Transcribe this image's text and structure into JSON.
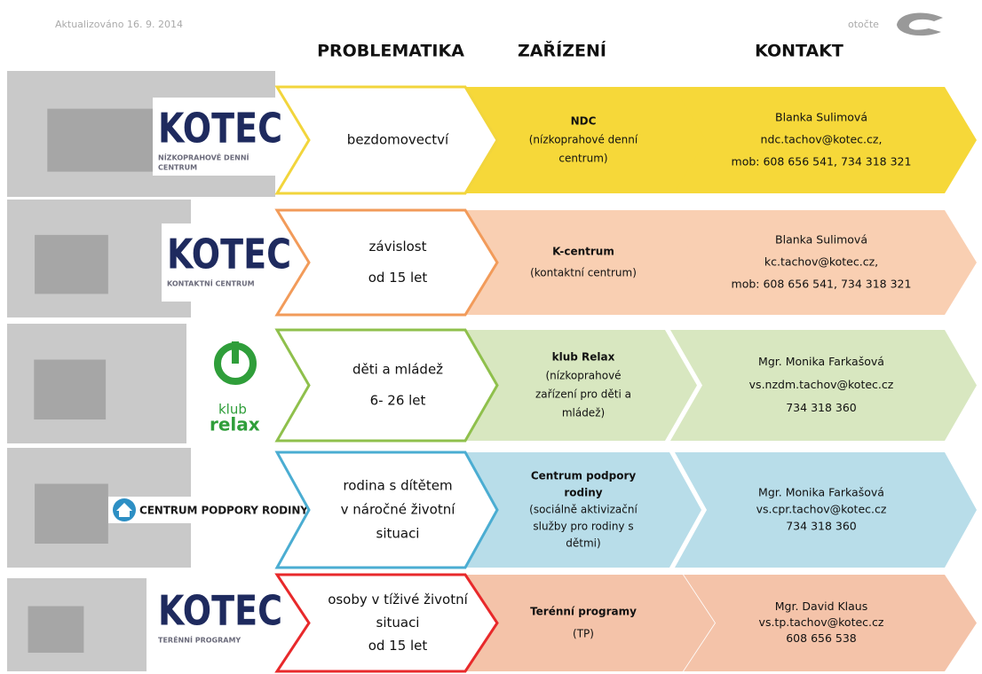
{
  "header": {
    "updated": "Aktualizováno 16. 9. 2014",
    "turn": "otočte"
  },
  "columns": [
    "PROBLEMATIKA",
    "ZAŘÍZENÍ",
    "KONTAKT"
  ],
  "rows": [
    {
      "logo": {
        "brand": "KOTEC",
        "subtitle": [
          "NÍZKOPRAHOVÉ DENNÍ",
          "CENTRUM"
        ]
      },
      "problem": [
        "bezdomovectví"
      ],
      "facility": {
        "title": [
          "NDC"
        ],
        "detail": [
          "(nízkoprahové denní",
          "centrum)"
        ]
      },
      "contact": [
        "Blanka Sulimová",
        "ndc.tachov@kotec.cz,",
        "mob: 608 656 541, 734 318 321"
      ]
    },
    {
      "logo": {
        "brand": "KOTEC",
        "subtitle": [
          "KONTAKTNÍ CENTRUM"
        ]
      },
      "problem": [
        "závislost",
        "od 15 let"
      ],
      "facility": {
        "title": [
          "K-centrum"
        ],
        "detail": [
          "(kontaktní centrum)"
        ]
      },
      "contact": [
        "Blanka Sulimová",
        "kc.tachov@kotec.cz,",
        "mob: 608 656 541, 734 318 321"
      ]
    },
    {
      "logo": {
        "brand": "relax",
        "subtitle": [
          "klub"
        ]
      },
      "problem": [
        "děti a mládež",
        "6- 26 let"
      ],
      "facility": {
        "title": [
          "klub Relax"
        ],
        "detail": [
          "(nízkoprahové",
          "zařízení pro děti a",
          "mládež)"
        ]
      },
      "contact": [
        "Mgr. Monika Farkašová",
        "vs.nzdm.tachov@kotec.cz",
        "734 318 360"
      ]
    },
    {
      "logo": {
        "brand": "CENTRUM PODPORY RODINY",
        "subtitle": []
      },
      "problem": [
        "rodina s dítětem",
        "v náročné životní",
        "situaci"
      ],
      "facility": {
        "title": [
          "Centrum podpory",
          "rodiny"
        ],
        "detail": [
          "(sociálně aktivizační",
          "služby pro rodiny s",
          "dětmi)"
        ]
      },
      "contact": [
        "Mgr. Monika Farkašová",
        "vs.cpr.tachov@kotec.cz",
        "734 318 360"
      ]
    },
    {
      "logo": {
        "brand": "KOTEC",
        "subtitle": [
          "TERÉNNÍ PROGRAMY"
        ]
      },
      "problem": [
        "osoby v tíživé životní",
        "situaci",
        "od 15 let"
      ],
      "facility": {
        "title": [
          "Terénní programy"
        ],
        "detail": [
          "(TP)"
        ]
      },
      "contact": [
        "Mgr. David Klaus",
        "vs.tp.tachov@kotec.cz",
        "608 656 538"
      ]
    }
  ]
}
